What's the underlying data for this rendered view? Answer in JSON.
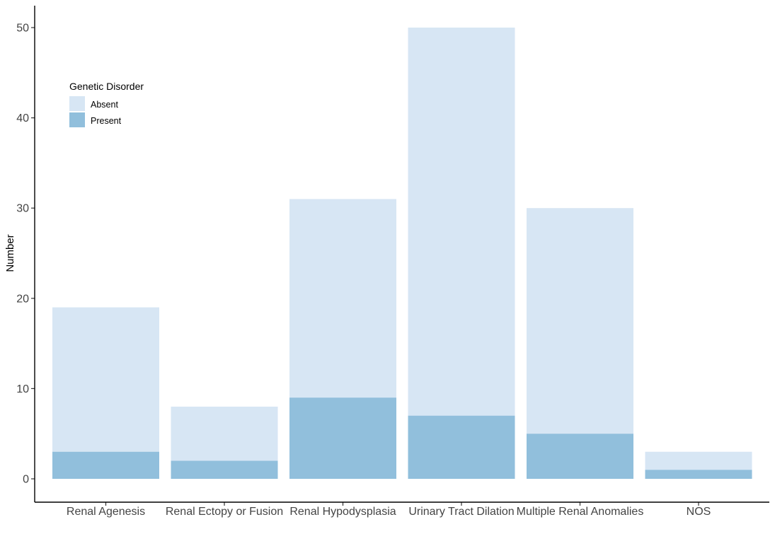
{
  "chart_data": {
    "type": "bar",
    "stacked": true,
    "categories": [
      "Renal Agenesis",
      "Renal Ectopy or Fusion",
      "Renal Hypodysplasia",
      "Urinary Tract Dilation",
      "Multiple Renal Anomalies",
      "NOS"
    ],
    "series": [
      {
        "name": "Present",
        "values": [
          3,
          2,
          9,
          7,
          5,
          1
        ],
        "color": "#91bfdc"
      },
      {
        "name": "Absent",
        "values": [
          16,
          6,
          22,
          43,
          25,
          2
        ],
        "color": "#d7e6f4"
      }
    ],
    "totals": [
      19,
      8,
      31,
      50,
      30,
      3
    ],
    "ylabel": "Number",
    "xlabel": "",
    "ylim": [
      0,
      50
    ],
    "yticks": [
      0,
      10,
      20,
      30,
      40,
      50
    ],
    "grid": false,
    "legend": {
      "title": "Genetic Disorder",
      "position": "top-left",
      "entries": [
        {
          "label": "Absent",
          "color": "#d7e6f4"
        },
        {
          "label": "Present",
          "color": "#91bfdc"
        }
      ]
    }
  }
}
